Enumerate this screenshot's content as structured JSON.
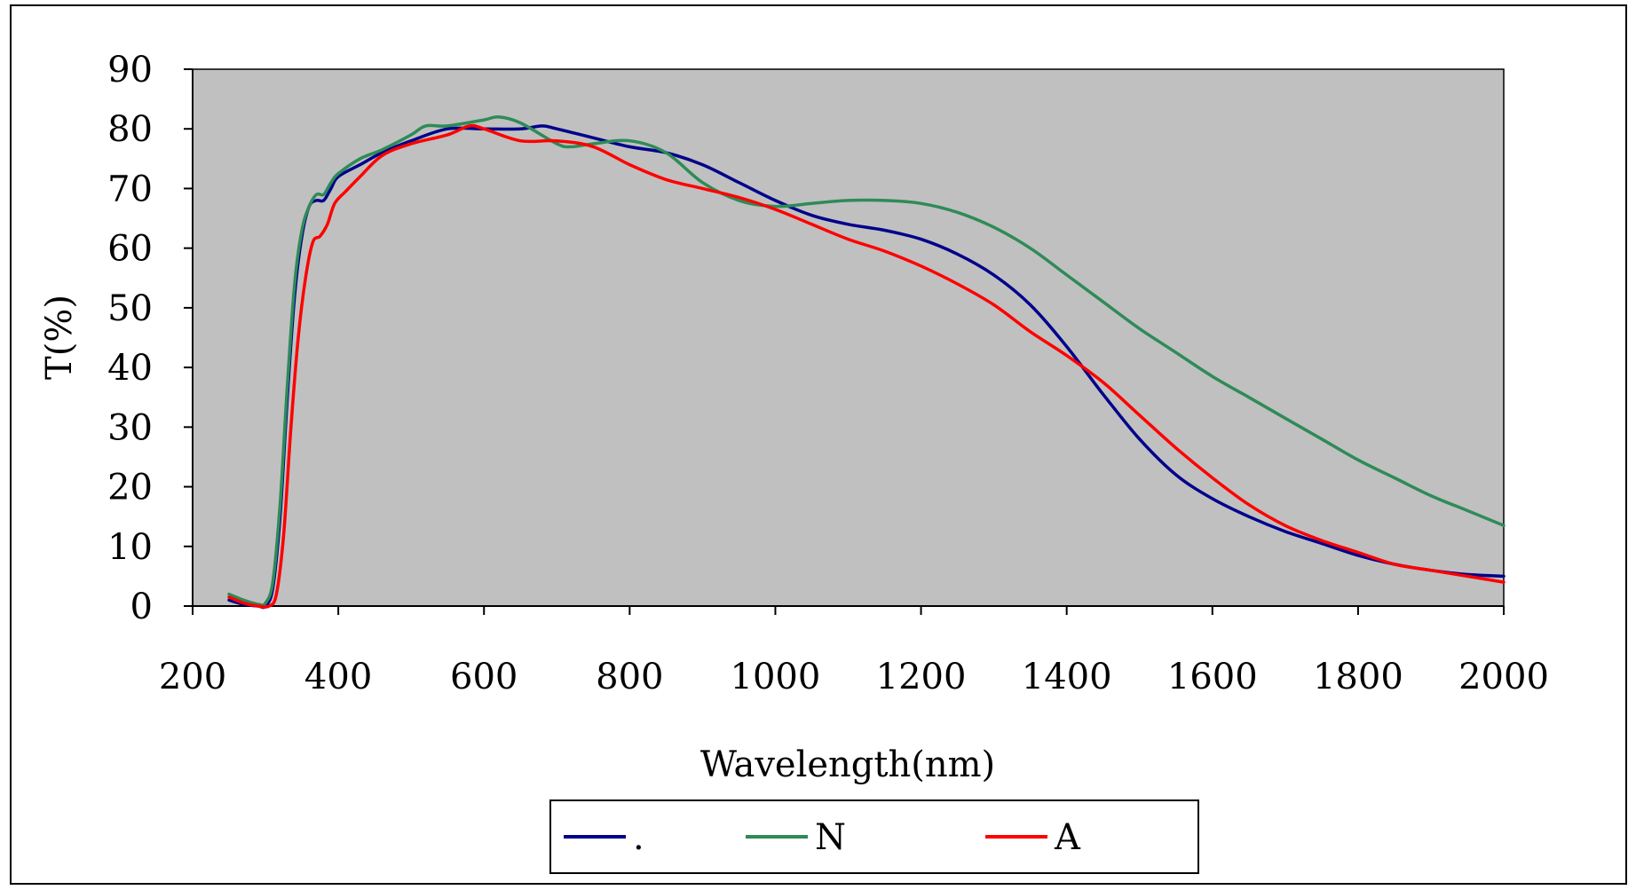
{
  "chart_data": {
    "type": "line",
    "title": "",
    "xlabel": "Wavelength(nm)",
    "ylabel": "T(%)",
    "xlim": [
      200,
      2000
    ],
    "ylim": [
      0,
      90
    ],
    "x_ticks": [
      200,
      400,
      600,
      800,
      1000,
      1200,
      1400,
      1600,
      1800,
      2000
    ],
    "y_ticks": [
      0,
      10,
      20,
      30,
      40,
      50,
      60,
      70,
      80,
      90
    ],
    "grid": false,
    "legend_position": "bottom",
    "plot_background": "#c0c0c0",
    "series": [
      {
        "name": ".",
        "color": "#00008b",
        "points": [
          [
            250,
            1
          ],
          [
            270,
            0.3
          ],
          [
            290,
            0
          ],
          [
            300,
            0
          ],
          [
            310,
            3
          ],
          [
            320,
            15
          ],
          [
            330,
            35
          ],
          [
            340,
            52
          ],
          [
            350,
            62
          ],
          [
            360,
            67
          ],
          [
            370,
            68
          ],
          [
            380,
            68
          ],
          [
            390,
            70
          ],
          [
            400,
            72
          ],
          [
            430,
            74
          ],
          [
            460,
            76
          ],
          [
            500,
            78
          ],
          [
            550,
            80
          ],
          [
            600,
            80
          ],
          [
            650,
            80
          ],
          [
            680,
            80.5
          ],
          [
            700,
            80
          ],
          [
            750,
            78.5
          ],
          [
            800,
            77
          ],
          [
            850,
            76
          ],
          [
            900,
            74
          ],
          [
            950,
            71
          ],
          [
            1000,
            68
          ],
          [
            1050,
            65.5
          ],
          [
            1100,
            64
          ],
          [
            1150,
            63
          ],
          [
            1200,
            61.5
          ],
          [
            1250,
            59
          ],
          [
            1300,
            55.5
          ],
          [
            1350,
            50.5
          ],
          [
            1400,
            43.5
          ],
          [
            1450,
            35.5
          ],
          [
            1500,
            28
          ],
          [
            1550,
            22
          ],
          [
            1600,
            18
          ],
          [
            1650,
            15
          ],
          [
            1700,
            12.5
          ],
          [
            1750,
            10.5
          ],
          [
            1800,
            8.5
          ],
          [
            1850,
            7
          ],
          [
            1900,
            6
          ],
          [
            1950,
            5.3
          ],
          [
            2000,
            5
          ]
        ]
      },
      {
        "name": "N",
        "color": "#2e8b57",
        "points": [
          [
            250,
            2
          ],
          [
            270,
            1
          ],
          [
            290,
            0.3
          ],
          [
            300,
            0.5
          ],
          [
            310,
            4
          ],
          [
            320,
            17
          ],
          [
            330,
            37
          ],
          [
            340,
            54
          ],
          [
            350,
            63
          ],
          [
            360,
            67
          ],
          [
            370,
            69
          ],
          [
            380,
            69
          ],
          [
            390,
            71
          ],
          [
            400,
            72.5
          ],
          [
            430,
            75
          ],
          [
            460,
            76.5
          ],
          [
            500,
            79
          ],
          [
            520,
            80.5
          ],
          [
            550,
            80.5
          ],
          [
            600,
            81.5
          ],
          [
            620,
            82
          ],
          [
            650,
            81
          ],
          [
            700,
            77.5
          ],
          [
            720,
            77
          ],
          [
            750,
            77.5
          ],
          [
            800,
            78
          ],
          [
            850,
            76
          ],
          [
            900,
            71
          ],
          [
            950,
            68
          ],
          [
            1000,
            67
          ],
          [
            1050,
            67.5
          ],
          [
            1100,
            68
          ],
          [
            1150,
            68
          ],
          [
            1200,
            67.5
          ],
          [
            1250,
            66
          ],
          [
            1300,
            63.5
          ],
          [
            1350,
            60
          ],
          [
            1400,
            55.5
          ],
          [
            1450,
            51
          ],
          [
            1500,
            46.5
          ],
          [
            1550,
            42.5
          ],
          [
            1600,
            38.5
          ],
          [
            1650,
            35
          ],
          [
            1700,
            31.5
          ],
          [
            1750,
            28
          ],
          [
            1800,
            24.5
          ],
          [
            1850,
            21.5
          ],
          [
            1900,
            18.5
          ],
          [
            1950,
            16
          ],
          [
            2000,
            13.5
          ]
        ]
      },
      {
        "name": "A",
        "color": "#ff0000",
        "points": [
          [
            250,
            1.5
          ],
          [
            270,
            0.5
          ],
          [
            290,
            0
          ],
          [
            305,
            0
          ],
          [
            315,
            2
          ],
          [
            325,
            12
          ],
          [
            335,
            30
          ],
          [
            345,
            45
          ],
          [
            355,
            55
          ],
          [
            365,
            61
          ],
          [
            375,
            62
          ],
          [
            385,
            64
          ],
          [
            395,
            67.5
          ],
          [
            410,
            69.5
          ],
          [
            430,
            72
          ],
          [
            460,
            75.5
          ],
          [
            500,
            77.5
          ],
          [
            550,
            79
          ],
          [
            580,
            80.5
          ],
          [
            600,
            80
          ],
          [
            650,
            78
          ],
          [
            700,
            78
          ],
          [
            750,
            77
          ],
          [
            800,
            74
          ],
          [
            850,
            71.5
          ],
          [
            900,
            70
          ],
          [
            950,
            68.5
          ],
          [
            1000,
            66.5
          ],
          [
            1050,
            64
          ],
          [
            1100,
            61.5
          ],
          [
            1150,
            59.5
          ],
          [
            1200,
            57
          ],
          [
            1250,
            54
          ],
          [
            1300,
            50.5
          ],
          [
            1350,
            46
          ],
          [
            1400,
            42
          ],
          [
            1450,
            37.5
          ],
          [
            1500,
            32
          ],
          [
            1550,
            26.5
          ],
          [
            1600,
            21.5
          ],
          [
            1650,
            17
          ],
          [
            1700,
            13.5
          ],
          [
            1750,
            11
          ],
          [
            1800,
            9
          ],
          [
            1850,
            7
          ],
          [
            1900,
            6
          ],
          [
            1950,
            5
          ],
          [
            2000,
            4
          ]
        ]
      }
    ]
  }
}
